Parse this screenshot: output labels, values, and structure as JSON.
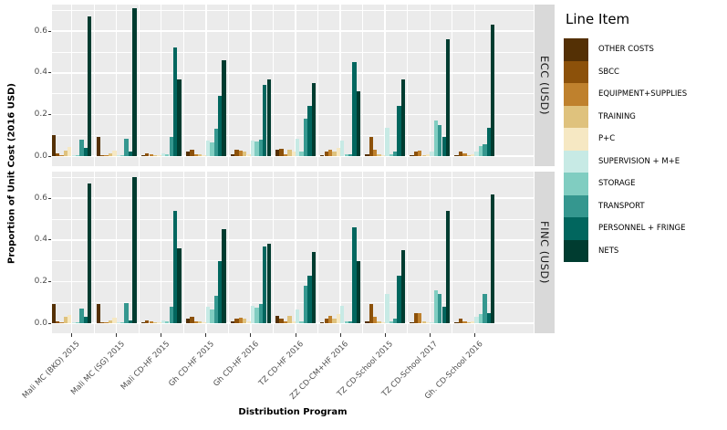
{
  "chart_data": {
    "type": "bar",
    "title": "",
    "xlabel": "Distribution Program",
    "ylabel": "Proportion of Unit Cost (2016 USD)",
    "legend_title": "Line Item",
    "legend_position": "right",
    "grid": true,
    "ylim": [
      0,
      0.72
    ],
    "ytick_labels": [
      "0.0",
      "0.2",
      "0.4",
      "0.6"
    ],
    "ytick_values": [
      0,
      0.2,
      0.4,
      0.6
    ],
    "ytick_minor_values": [
      0.1,
      0.3,
      0.5,
      0.7
    ],
    "categories": [
      "Mali MC (BKO) 2015",
      "Mali MC (SG) 2015",
      "Mali CD-HF 2015",
      "Gh CD-HF 2015",
      "Gh CD-HF 2016",
      "TZ CD-HF 2016",
      "ZZ CD-CM+HF 2016",
      "TZ CD-School 2015",
      "TZ CD-School 2017",
      "Gh. CD-School 2016"
    ],
    "items": [
      {
        "name": "OTHER COSTS",
        "color": "#543005"
      },
      {
        "name": "SBCC",
        "color": "#8c510a"
      },
      {
        "name": "EQUIPMENT+SUPPLIES",
        "color": "#bf812d"
      },
      {
        "name": "TRAINING",
        "color": "#dfc27d"
      },
      {
        "name": "P+C",
        "color": "#f6e8c3"
      },
      {
        "name": "SUPERVISION + M+E",
        "color": "#c7eae5"
      },
      {
        "name": "STORAGE",
        "color": "#80cdc1"
      },
      {
        "name": "TRANSPORT",
        "color": "#35978f"
      },
      {
        "name": "PERSONNEL + FRINGE",
        "color": "#01665e"
      },
      {
        "name": "NETS",
        "color": "#003c30"
      }
    ],
    "facets": [
      {
        "label": "ECC (USD)",
        "series": [
          {
            "name": "OTHER COSTS",
            "values": [
              0.1,
              0.09,
              0.005,
              0.02,
              0.01,
              0.03,
              0.005,
              0.01,
              0.005,
              0.005
            ]
          },
          {
            "name": "SBCC",
            "values": [
              0.012,
              0.005,
              0.015,
              0.03,
              0.03,
              0.035,
              0.02,
              0.09,
              0.02,
              0.02
            ]
          },
          {
            "name": "EQUIPMENT+SUPPLIES",
            "values": [
              0.005,
              0.005,
              0.01,
              0.01,
              0.025,
              0.01,
              0.03,
              0.03,
              0.025,
              0.015
            ]
          },
          {
            "name": "TRAINING",
            "values": [
              0.028,
              0.015,
              0.005,
              0.01,
              0.02,
              0.03,
              0.02,
              0.01,
              0.005,
              0.005
            ]
          },
          {
            "name": "P+C",
            "values": [
              0.042,
              0.025,
              0.005,
              0.005,
              0.01,
              0.02,
              0.04,
              0.005,
              0.01,
              0.01
            ]
          },
          {
            "name": "SUPERVISION + M+E",
            "values": [
              0.006,
              0.005,
              0.015,
              0.075,
              0.075,
              0.085,
              0.075,
              0.135,
              0.02,
              0.02
            ]
          },
          {
            "name": "STORAGE",
            "values": [
              0.005,
              0.005,
              0.01,
              0.065,
              0.07,
              0.02,
              0.01,
              0.01,
              0.17,
              0.05
            ]
          },
          {
            "name": "TRANSPORT",
            "values": [
              0.08,
              0.085,
              0.09,
              0.13,
              0.08,
              0.18,
              0.01,
              0.02,
              0.15,
              0.055
            ]
          },
          {
            "name": "PERSONNEL + FRINGE",
            "values": [
              0.04,
              0.02,
              0.52,
              0.29,
              0.34,
              0.24,
              0.45,
              0.24,
              0.09,
              0.135
            ]
          },
          {
            "name": "NETS",
            "values": [
              0.67,
              0.71,
              0.37,
              0.46,
              0.37,
              0.35,
              0.31,
              0.37,
              0.56,
              0.63
            ]
          }
        ]
      },
      {
        "label": "FINC (USD)",
        "series": [
          {
            "name": "OTHER COSTS",
            "values": [
              0.09,
              0.09,
              0.005,
              0.02,
              0.01,
              0.035,
              0.005,
              0.01,
              0.005,
              0.005
            ]
          },
          {
            "name": "SBCC",
            "values": [
              0.01,
              0.005,
              0.015,
              0.03,
              0.02,
              0.02,
              0.02,
              0.09,
              0.05,
              0.02
            ]
          },
          {
            "name": "EQUIPMENT+SUPPLIES",
            "values": [
              0.005,
              0.005,
              0.01,
              0.01,
              0.025,
              0.01,
              0.035,
              0.03,
              0.05,
              0.01
            ]
          },
          {
            "name": "TRAINING",
            "values": [
              0.03,
              0.015,
              0.005,
              0.01,
              0.02,
              0.035,
              0.02,
              0.01,
              0.01,
              0.005
            ]
          },
          {
            "name": "P+C",
            "values": [
              0.04,
              0.025,
              0.005,
              0.005,
              0.01,
              0.01,
              0.045,
              0.005,
              0.005,
              0.01
            ]
          },
          {
            "name": "SUPERVISION + M+E",
            "values": [
              0.006,
              0.005,
              0.015,
              0.08,
              0.085,
              0.065,
              0.085,
              0.14,
              0.005,
              0.03
            ]
          },
          {
            "name": "STORAGE",
            "values": [
              0.005,
              0.005,
              0.01,
              0.065,
              0.075,
              0.01,
              0.01,
              0.01,
              0.16,
              0.045
            ]
          },
          {
            "name": "TRANSPORT",
            "values": [
              0.07,
              0.095,
              0.08,
              0.13,
              0.09,
              0.18,
              0.01,
              0.02,
              0.14,
              0.14
            ]
          },
          {
            "name": "PERSONNEL + FRINGE",
            "values": [
              0.03,
              0.015,
              0.54,
              0.3,
              0.37,
              0.23,
              0.46,
              0.23,
              0.08,
              0.05
            ]
          },
          {
            "name": "NETS",
            "values": [
              0.67,
              0.7,
              0.36,
              0.45,
              0.38,
              0.34,
              0.3,
              0.35,
              0.54,
              0.62
            ]
          }
        ]
      }
    ]
  }
}
